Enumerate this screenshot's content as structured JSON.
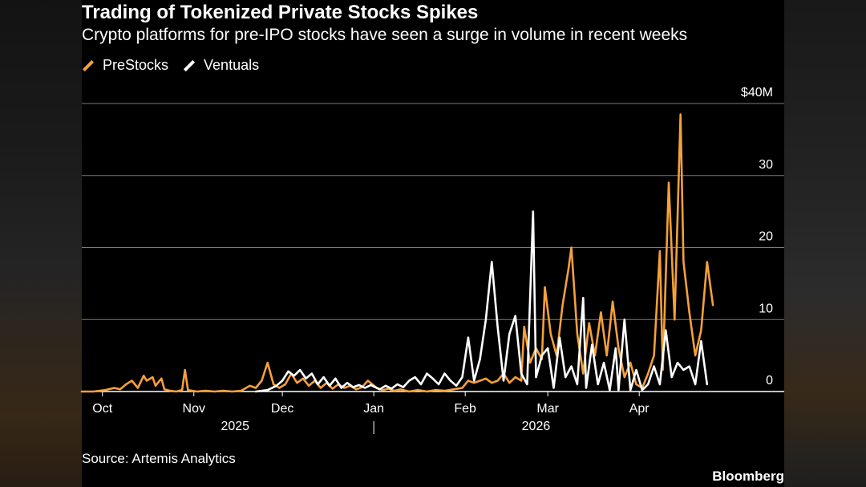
{
  "title": "Trading of Tokenized Private Stocks Spikes",
  "subtitle": "Crypto platforms for pre-IPO stocks have seen a surge in volume in recent weeks",
  "source": "Source: Artemis Analytics",
  "brand": "Bloomberg",
  "colors": {
    "prestocks": "#f5a03a",
    "ventuals": "#ffffff",
    "grid": "#7a7a7a"
  },
  "chart_data": {
    "type": "line",
    "ylim": [
      0,
      40
    ],
    "y_ticks": [
      {
        "value": 0,
        "label": "0"
      },
      {
        "value": 10,
        "label": "10"
      },
      {
        "value": 20,
        "label": "20"
      },
      {
        "value": 30,
        "label": "30"
      },
      {
        "value": 40,
        "label": "$40M"
      }
    ],
    "x_ticks": [
      {
        "x": "2025-10-01",
        "label": "Oct"
      },
      {
        "x": "2025-11-01",
        "label": "Nov"
      },
      {
        "x": "2025-12-01",
        "label": "Dec"
      },
      {
        "x": "2026-01-01",
        "label": "Jan"
      },
      {
        "x": "2026-02-01",
        "label": "Feb"
      },
      {
        "x": "2026-03-01",
        "label": "Mar"
      },
      {
        "x": "2026-04-01",
        "label": "Apr"
      }
    ],
    "year_labels": [
      {
        "x": "2025-11-15",
        "label": "2025"
      },
      {
        "x": "2026-02-25",
        "label": "2026"
      }
    ],
    "xlim": [
      "2025-09-24",
      "2026-05-12"
    ],
    "legend": "top-left",
    "grid": true,
    "series": [
      {
        "name": "PreStocks",
        "points": [
          [
            "2025-09-24",
            0
          ],
          [
            "2025-09-28",
            0
          ],
          [
            "2025-10-02",
            0.2
          ],
          [
            "2025-10-05",
            0.5
          ],
          [
            "2025-10-07",
            0.3
          ],
          [
            "2025-10-09",
            1.0
          ],
          [
            "2025-10-11",
            1.5
          ],
          [
            "2025-10-13",
            0.5
          ],
          [
            "2025-10-15",
            2.2
          ],
          [
            "2025-10-16",
            1.5
          ],
          [
            "2025-10-18",
            2.0
          ],
          [
            "2025-10-19",
            0.8
          ],
          [
            "2025-10-21",
            1.8
          ],
          [
            "2025-10-22",
            0.3
          ],
          [
            "2025-10-24",
            0.1
          ],
          [
            "2025-10-26",
            0
          ],
          [
            "2025-10-28",
            0.2
          ],
          [
            "2025-10-29",
            3.0
          ],
          [
            "2025-10-30",
            0.2
          ],
          [
            "2025-11-02",
            0
          ],
          [
            "2025-11-05",
            0.1
          ],
          [
            "2025-11-08",
            0
          ],
          [
            "2025-11-11",
            0.1
          ],
          [
            "2025-11-14",
            0
          ],
          [
            "2025-11-17",
            0.1
          ],
          [
            "2025-11-20",
            0.8
          ],
          [
            "2025-11-22",
            0.5
          ],
          [
            "2025-11-24",
            1.5
          ],
          [
            "2025-11-26",
            4.0
          ],
          [
            "2025-11-28",
            1.0
          ],
          [
            "2025-11-30",
            0.5
          ],
          [
            "2025-12-02",
            1.0
          ],
          [
            "2025-12-04",
            2.5
          ],
          [
            "2025-12-06",
            1.2
          ],
          [
            "2025-12-08",
            1.8
          ],
          [
            "2025-12-10",
            0.8
          ],
          [
            "2025-12-12",
            1.5
          ],
          [
            "2025-12-14",
            0.5
          ],
          [
            "2025-12-16",
            1.2
          ],
          [
            "2025-12-18",
            0.4
          ],
          [
            "2025-12-20",
            1.0
          ],
          [
            "2025-12-22",
            0.5
          ],
          [
            "2025-12-24",
            0.8
          ],
          [
            "2025-12-26",
            0.3
          ],
          [
            "2025-12-28",
            0.6
          ],
          [
            "2025-12-30",
            1.5
          ],
          [
            "2026-01-02",
            0.5
          ],
          [
            "2026-01-04",
            0.2
          ],
          [
            "2026-01-06",
            0.4
          ],
          [
            "2026-01-08",
            0.1
          ],
          [
            "2026-01-10",
            0.3
          ],
          [
            "2026-01-13",
            0
          ],
          [
            "2026-01-16",
            0.2
          ],
          [
            "2026-01-19",
            0
          ],
          [
            "2026-01-22",
            0.2
          ],
          [
            "2026-01-25",
            0.1
          ],
          [
            "2026-01-28",
            0.3
          ],
          [
            "2026-01-31",
            0.5
          ],
          [
            "2026-02-02",
            1.5
          ],
          [
            "2026-02-04",
            1.2
          ],
          [
            "2026-02-06",
            1.5
          ],
          [
            "2026-02-08",
            1.8
          ],
          [
            "2026-02-10",
            1.2
          ],
          [
            "2026-02-12",
            1.5
          ],
          [
            "2026-02-14",
            2.5
          ],
          [
            "2026-02-16",
            1.2
          ],
          [
            "2026-02-18",
            2.0
          ],
          [
            "2026-02-20",
            1.5
          ],
          [
            "2026-02-21",
            9.0
          ],
          [
            "2026-02-23",
            4.0
          ],
          [
            "2026-02-25",
            6.0
          ],
          [
            "2026-02-27",
            4.5
          ],
          [
            "2026-02-28",
            14.5
          ],
          [
            "2026-03-02",
            8.0
          ],
          [
            "2026-03-04",
            5.0
          ],
          [
            "2026-03-06",
            12.0
          ],
          [
            "2026-03-08",
            17.0
          ],
          [
            "2026-03-09",
            20.0
          ],
          [
            "2026-03-11",
            8.0
          ],
          [
            "2026-03-13",
            2.5
          ],
          [
            "2026-03-15",
            9.5
          ],
          [
            "2026-03-17",
            5.0
          ],
          [
            "2026-03-19",
            11.0
          ],
          [
            "2026-03-21",
            5.0
          ],
          [
            "2026-03-23",
            12.5
          ],
          [
            "2026-03-25",
            6.0
          ],
          [
            "2026-03-27",
            2.0
          ],
          [
            "2026-03-29",
            4.0
          ],
          [
            "2026-03-31",
            1.0
          ],
          [
            "2026-04-02",
            0.5
          ],
          [
            "2026-04-04",
            2.5
          ],
          [
            "2026-04-06",
            5.0
          ],
          [
            "2026-04-08",
            19.5
          ],
          [
            "2026-04-09",
            3.0
          ],
          [
            "2026-04-11",
            29.0
          ],
          [
            "2026-04-13",
            10.0
          ],
          [
            "2026-04-15",
            38.5
          ],
          [
            "2026-04-16",
            18.0
          ],
          [
            "2026-04-18",
            11.0
          ],
          [
            "2026-04-20",
            5.0
          ],
          [
            "2026-04-22",
            8.5
          ],
          [
            "2026-04-24",
            18.0
          ],
          [
            "2026-04-26",
            12.0
          ]
        ]
      },
      {
        "name": "Ventuals",
        "points": [
          [
            "2025-11-22",
            0
          ],
          [
            "2025-11-26",
            0.2
          ],
          [
            "2025-11-29",
            0.8
          ],
          [
            "2025-12-01",
            1.5
          ],
          [
            "2025-12-03",
            2.8
          ],
          [
            "2025-12-05",
            2.2
          ],
          [
            "2025-12-07",
            3.0
          ],
          [
            "2025-12-09",
            1.8
          ],
          [
            "2025-12-11",
            2.5
          ],
          [
            "2025-12-13",
            1.0
          ],
          [
            "2025-12-15",
            2.0
          ],
          [
            "2025-12-17",
            0.8
          ],
          [
            "2025-12-19",
            1.8
          ],
          [
            "2025-12-21",
            0.5
          ],
          [
            "2025-12-23",
            1.2
          ],
          [
            "2025-12-25",
            0.6
          ],
          [
            "2025-12-27",
            0.9
          ],
          [
            "2025-12-29",
            0.5
          ],
          [
            "2025-12-31",
            0.9
          ],
          [
            "2026-01-03",
            0.3
          ],
          [
            "2026-01-05",
            0.8
          ],
          [
            "2026-01-07",
            0.4
          ],
          [
            "2026-01-09",
            1.0
          ],
          [
            "2026-01-11",
            0.6
          ],
          [
            "2026-01-13",
            1.5
          ],
          [
            "2026-01-15",
            2.0
          ],
          [
            "2026-01-17",
            1.0
          ],
          [
            "2026-01-19",
            2.5
          ],
          [
            "2026-01-21",
            1.8
          ],
          [
            "2026-01-23",
            1.0
          ],
          [
            "2026-01-25",
            2.5
          ],
          [
            "2026-01-27",
            1.5
          ],
          [
            "2026-01-29",
            0.8
          ],
          [
            "2026-01-31",
            2.0
          ],
          [
            "2026-02-02",
            7.5
          ],
          [
            "2026-02-04",
            1.5
          ],
          [
            "2026-02-06",
            4.5
          ],
          [
            "2026-02-08",
            10.0
          ],
          [
            "2026-02-10",
            18.0
          ],
          [
            "2026-02-12",
            9.0
          ],
          [
            "2026-02-14",
            1.5
          ],
          [
            "2026-02-16",
            8.0
          ],
          [
            "2026-02-18",
            10.5
          ],
          [
            "2026-02-20",
            2.5
          ],
          [
            "2026-02-22",
            1.0
          ],
          [
            "2026-02-24",
            25.0
          ],
          [
            "2026-02-25",
            2.0
          ],
          [
            "2026-02-27",
            5.0
          ],
          [
            "2026-03-01",
            6.0
          ],
          [
            "2026-03-03",
            0.5
          ],
          [
            "2026-03-05",
            7.5
          ],
          [
            "2026-03-07",
            2.0
          ],
          [
            "2026-03-09",
            3.5
          ],
          [
            "2026-03-11",
            1.0
          ],
          [
            "2026-03-13",
            13.0
          ],
          [
            "2026-03-14",
            0.5
          ],
          [
            "2026-03-16",
            6.5
          ],
          [
            "2026-03-18",
            1.0
          ],
          [
            "2026-03-20",
            4.0
          ],
          [
            "2026-03-22",
            0.2
          ],
          [
            "2026-03-24",
            6.0
          ],
          [
            "2026-03-25",
            0.2
          ],
          [
            "2026-03-27",
            10.0
          ],
          [
            "2026-03-29",
            0.2
          ],
          [
            "2026-03-31",
            3.0
          ],
          [
            "2026-04-02",
            0.2
          ],
          [
            "2026-04-04",
            1.0
          ],
          [
            "2026-04-06",
            3.5
          ],
          [
            "2026-04-08",
            1.0
          ],
          [
            "2026-04-10",
            8.5
          ],
          [
            "2026-04-12",
            2.0
          ],
          [
            "2026-04-14",
            4.0
          ],
          [
            "2026-04-16",
            3.0
          ],
          [
            "2026-04-18",
            3.5
          ],
          [
            "2026-04-20",
            1.0
          ],
          [
            "2026-04-22",
            7.0
          ],
          [
            "2026-04-24",
            1.0
          ]
        ]
      }
    ]
  }
}
